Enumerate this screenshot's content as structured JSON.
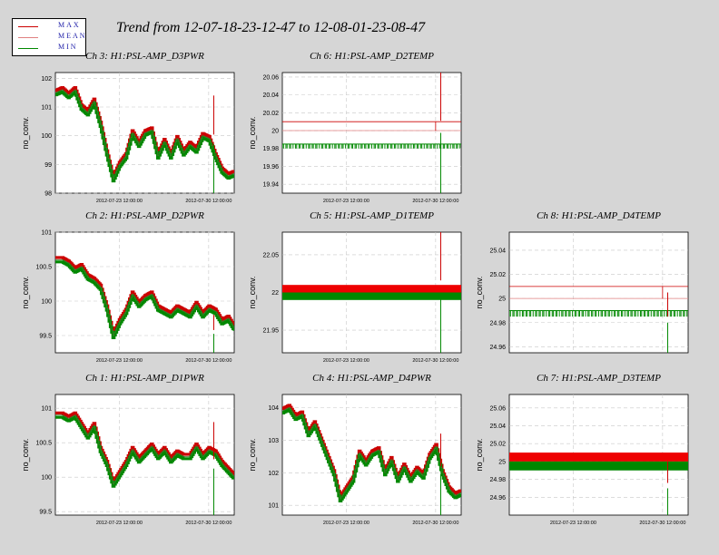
{
  "title": "Trend from 12-07-18-23-12-47 to 12-08-01-23-08-47",
  "legend": [
    {
      "label": "MAX",
      "color": "#cc0000"
    },
    {
      "label": "MEAN",
      "color": "#e08080"
    },
    {
      "label": "MIN",
      "color": "#008800"
    }
  ],
  "chart_data": [
    {
      "type": "line",
      "title": "Ch 3: H1:PSL-AMP_D3PWR",
      "ylabel": "no_conv.",
      "ylim": [
        98,
        102.2
      ],
      "yticks": [
        98,
        99,
        100,
        101,
        102
      ],
      "xticks": [
        "2012-07-23 12:00:00",
        "2012-07-30 12:00:00"
      ],
      "kind": "pwr",
      "x": [
        0,
        0.5,
        1,
        1.5,
        2,
        2.5,
        3,
        3.5,
        4,
        4.5,
        5,
        5.5,
        6,
        6.5,
        7,
        7.5,
        8,
        8.5,
        9,
        9.5,
        10,
        10.5,
        11,
        11.5,
        12,
        12.5,
        13,
        13.5,
        14
      ],
      "mean": [
        101.5,
        101.6,
        101.4,
        101.6,
        101.0,
        100.8,
        101.2,
        100.4,
        99.4,
        98.5,
        99.0,
        99.3,
        100.1,
        99.7,
        100.1,
        100.2,
        99.3,
        99.8,
        99.3,
        99.9,
        99.4,
        99.7,
        99.5,
        100.0,
        99.9,
        99.3,
        98.8,
        98.6,
        98.7
      ],
      "spike": {
        "x": 12.4,
        "max": 101.4,
        "min": 98.0
      }
    },
    {
      "type": "line",
      "title": "Ch 6: H1:PSL-AMP_D2TEMP",
      "ylabel": "no_conv.",
      "ylim": [
        19.93,
        20.065
      ],
      "yticks": [
        19.94,
        19.96,
        19.98,
        20,
        20.02,
        20.04,
        20.06
      ],
      "xticks": [
        "2012-07-23 12:00:00",
        "2012-07-30 12:00:00"
      ],
      "kind": "temp3",
      "levels": {
        "max": 20.01,
        "mean": 20.0,
        "min": 19.985,
        "min_drop": 19.98
      },
      "spike": {
        "x": 12.4,
        "max": 20.065,
        "min": 19.93
      }
    },
    {
      "type": "line",
      "title": "Ch 2: H1:PSL-AMP_D2PWR",
      "ylabel": "no_conv.",
      "ylim": [
        99.25,
        101
      ],
      "yticks": [
        99.5,
        100,
        100.5,
        101
      ],
      "xticks": [
        "2012-07-23 12:00:00",
        "2012-07-30 12:00:00"
      ],
      "kind": "pwr",
      "x": [
        0,
        0.5,
        1,
        1.5,
        2,
        2.5,
        3,
        3.5,
        4,
        4.5,
        5,
        5.5,
        6,
        6.5,
        7,
        7.5,
        8,
        8.5,
        9,
        9.5,
        10,
        10.5,
        11,
        11.5,
        12,
        12.5,
        13,
        13.5,
        14
      ],
      "mean": [
        100.6,
        100.6,
        100.55,
        100.45,
        100.5,
        100.35,
        100.3,
        100.2,
        99.9,
        99.5,
        99.7,
        99.85,
        100.1,
        99.95,
        100.05,
        100.1,
        99.9,
        99.85,
        99.8,
        99.9,
        99.85,
        99.8,
        99.95,
        99.8,
        99.9,
        99.85,
        99.7,
        99.75,
        99.6
      ],
      "spike": {
        "x": 12.4,
        "max": 99.8,
        "min": 99.25
      }
    },
    {
      "type": "line",
      "title": "Ch 5: H1:PSL-AMP_D1TEMP",
      "ylabel": "no_conv.",
      "ylim": [
        21.92,
        22.08
      ],
      "yticks": [
        21.95,
        22,
        22.05
      ],
      "xticks": [
        "2012-07-23 12:00:00",
        "2012-07-30 12:00:00"
      ],
      "kind": "band",
      "bands": [
        {
          "top": 22.01,
          "bottom": 22.0,
          "color": "#ee0000"
        },
        {
          "top": 22.0,
          "bottom": 21.99,
          "color": "#008800"
        }
      ],
      "spike": {
        "x": 12.4,
        "max": 22.08,
        "min": 21.92
      }
    },
    {
      "type": "line",
      "title": "Ch 8: H1:PSL-AMP_D4TEMP",
      "ylabel": "no_conv.",
      "ylim": [
        24.955,
        25.055
      ],
      "yticks": [
        24.96,
        24.98,
        25,
        25.02,
        25.04
      ],
      "xticks": [],
      "kind": "temp3",
      "levels": {
        "max": 25.01,
        "mean": 25.0,
        "min": 24.99,
        "min_drop": 24.985
      },
      "spike": {
        "x": 12.4,
        "max": 25.005,
        "min": 24.955
      }
    },
    {
      "type": "line",
      "title": "Ch 1: H1:PSL-AMP_D1PWR",
      "ylabel": "no_conv.",
      "ylim": [
        99.45,
        101.2
      ],
      "yticks": [
        99.5,
        100,
        100.5,
        101
      ],
      "xticks": [
        "2012-07-23 12:00:00",
        "2012-07-30 12:00:00"
      ],
      "kind": "pwr",
      "x": [
        0,
        0.5,
        1,
        1.5,
        2,
        2.5,
        3,
        3.5,
        4,
        4.5,
        5,
        5.5,
        6,
        6.5,
        7,
        7.5,
        8,
        8.5,
        9,
        9.5,
        10,
        10.5,
        11,
        11.5,
        12,
        12.5,
        13,
        13.5,
        14
      ],
      "mean": [
        100.9,
        100.9,
        100.85,
        100.9,
        100.75,
        100.6,
        100.75,
        100.4,
        100.2,
        99.9,
        100.05,
        100.2,
        100.4,
        100.25,
        100.35,
        100.45,
        100.3,
        100.4,
        100.25,
        100.35,
        100.3,
        100.3,
        100.45,
        100.3,
        100.4,
        100.35,
        100.2,
        100.1,
        100.0
      ],
      "spike": {
        "x": 12.4,
        "max": 100.8,
        "min": 99.45
      }
    },
    {
      "type": "line",
      "title": "Ch 4: H1:PSL-AMP_D4PWR",
      "ylabel": "no_conv.",
      "ylim": [
        100.7,
        104.4
      ],
      "yticks": [
        101,
        102,
        103,
        104
      ],
      "xticks": [
        "2012-07-23 12:00:00",
        "2012-07-30 12:00:00"
      ],
      "kind": "pwr",
      "x": [
        0,
        0.5,
        1,
        1.5,
        2,
        2.5,
        3,
        3.5,
        4,
        4.5,
        5,
        5.5,
        6,
        6.5,
        7,
        7.5,
        8,
        8.5,
        9,
        9.5,
        10,
        10.5,
        11,
        11.5,
        12,
        12.5,
        13,
        13.5,
        14
      ],
      "mean": [
        103.9,
        104.0,
        103.7,
        103.8,
        103.2,
        103.5,
        103.0,
        102.5,
        102.0,
        101.2,
        101.5,
        101.8,
        102.6,
        102.3,
        102.6,
        102.7,
        102.0,
        102.4,
        101.8,
        102.2,
        101.8,
        102.1,
        101.9,
        102.5,
        102.8,
        102.0,
        101.5,
        101.3,
        101.4
      ],
      "spike": {
        "x": 12.4,
        "max": 103.2,
        "min": 100.7
      }
    },
    {
      "type": "line",
      "title": "Ch 7: H1:PSL-AMP_D3TEMP",
      "ylabel": "no_conv.",
      "ylim": [
        24.94,
        25.075
      ],
      "yticks": [
        24.96,
        24.98,
        25,
        25.02,
        25.04,
        25.06
      ],
      "xticks": [
        "2012-07-23 12:00:00",
        "2012-07-30 12:00:00"
      ],
      "kind": "band",
      "bands": [
        {
          "top": 25.01,
          "bottom": 25.0,
          "color": "#ee0000"
        },
        {
          "top": 25.0,
          "bottom": 24.99,
          "color": "#008800"
        }
      ],
      "spike": {
        "x": 12.4,
        "max": 25.0,
        "min": 24.94
      }
    }
  ]
}
